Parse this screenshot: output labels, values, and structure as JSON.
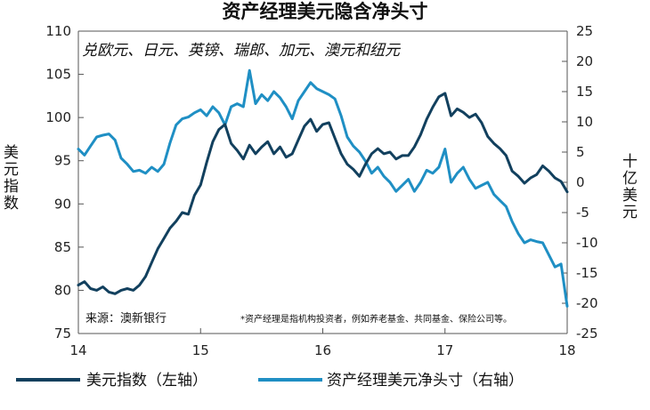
{
  "chart_data": {
    "type": "line",
    "title": "资产经理美元隐含净头寸",
    "subtitle": "兑欧元、日元、英镑、瑞郎、加元、澳元和纽元",
    "ylabel_left": "美元指数",
    "ylabel_right": "十亿美元",
    "ylim_left": [
      75,
      110
    ],
    "ylim_right": [
      -25,
      25
    ],
    "yticks_left": [
      "75",
      "80",
      "85",
      "90",
      "95",
      "100",
      "105",
      "110"
    ],
    "yticks_right": [
      "-25",
      "-20",
      "-15",
      "-10",
      "-5",
      "0",
      "5",
      "10",
      "15",
      "20",
      "25"
    ],
    "xlim": [
      2014.0,
      2018.0
    ],
    "xticks": [
      "14",
      "15",
      "16",
      "17",
      "18"
    ],
    "grid": false,
    "legend": "bottom",
    "colors": {
      "left_series": "#12405e",
      "right_series": "#1f8fc4"
    },
    "source": "来源：澳新银行",
    "footnote": "*资产经理是指机构投资者，例如养老基金、共同基金、保险公司等。",
    "series": [
      {
        "name": "美元指数（左轴）",
        "axis": "left",
        "points": [
          [
            2014.0,
            80.6
          ],
          [
            2014.05,
            81.0
          ],
          [
            2014.1,
            80.2
          ],
          [
            2014.15,
            80.0
          ],
          [
            2014.2,
            80.4
          ],
          [
            2014.25,
            79.8
          ],
          [
            2014.3,
            79.6
          ],
          [
            2014.35,
            80.0
          ],
          [
            2014.4,
            80.2
          ],
          [
            2014.45,
            80.0
          ],
          [
            2014.5,
            80.6
          ],
          [
            2014.55,
            81.6
          ],
          [
            2014.6,
            83.2
          ],
          [
            2014.65,
            84.8
          ],
          [
            2014.7,
            86.0
          ],
          [
            2014.75,
            87.2
          ],
          [
            2014.8,
            88.0
          ],
          [
            2014.85,
            89.0
          ],
          [
            2014.9,
            88.8
          ],
          [
            2014.95,
            91.0
          ],
          [
            2015.0,
            92.2
          ],
          [
            2015.05,
            94.8
          ],
          [
            2015.1,
            97.2
          ],
          [
            2015.15,
            98.6
          ],
          [
            2015.2,
            99.2
          ],
          [
            2015.25,
            97.0
          ],
          [
            2015.3,
            96.2
          ],
          [
            2015.35,
            95.2
          ],
          [
            2015.4,
            96.8
          ],
          [
            2015.45,
            95.8
          ],
          [
            2015.5,
            96.6
          ],
          [
            2015.55,
            97.2
          ],
          [
            2015.6,
            95.8
          ],
          [
            2015.65,
            96.6
          ],
          [
            2015.7,
            95.4
          ],
          [
            2015.75,
            95.8
          ],
          [
            2015.8,
            97.4
          ],
          [
            2015.85,
            99.0
          ],
          [
            2015.9,
            99.8
          ],
          [
            2015.95,
            98.4
          ],
          [
            2016.0,
            99.2
          ],
          [
            2016.05,
            99.4
          ],
          [
            2016.1,
            97.6
          ],
          [
            2016.15,
            95.8
          ],
          [
            2016.2,
            94.6
          ],
          [
            2016.25,
            94.0
          ],
          [
            2016.3,
            93.2
          ],
          [
            2016.35,
            94.6
          ],
          [
            2016.4,
            95.8
          ],
          [
            2016.45,
            96.4
          ],
          [
            2016.5,
            95.8
          ],
          [
            2016.55,
            96.0
          ],
          [
            2016.6,
            95.2
          ],
          [
            2016.65,
            95.6
          ],
          [
            2016.7,
            95.6
          ],
          [
            2016.75,
            96.6
          ],
          [
            2016.8,
            98.0
          ],
          [
            2016.85,
            99.8
          ],
          [
            2016.9,
            101.2
          ],
          [
            2016.95,
            102.4
          ],
          [
            2017.0,
            102.8
          ],
          [
            2017.05,
            100.2
          ],
          [
            2017.1,
            101.0
          ],
          [
            2017.15,
            100.6
          ],
          [
            2017.2,
            100.0
          ],
          [
            2017.25,
            100.4
          ],
          [
            2017.3,
            99.4
          ],
          [
            2017.35,
            97.8
          ],
          [
            2017.4,
            97.0
          ],
          [
            2017.45,
            96.4
          ],
          [
            2017.5,
            95.6
          ],
          [
            2017.55,
            93.8
          ],
          [
            2017.6,
            93.2
          ],
          [
            2017.65,
            92.4
          ],
          [
            2017.7,
            93.0
          ],
          [
            2017.75,
            93.4
          ],
          [
            2017.8,
            94.4
          ],
          [
            2017.85,
            93.8
          ],
          [
            2017.9,
            93.0
          ],
          [
            2017.95,
            92.6
          ],
          [
            2018.0,
            91.4
          ]
        ]
      },
      {
        "name": "资产经理美元净头寸（右轴）",
        "axis": "right",
        "points": [
          [
            2014.0,
            5.5
          ],
          [
            2014.05,
            4.5
          ],
          [
            2014.1,
            6.0
          ],
          [
            2014.15,
            7.5
          ],
          [
            2014.2,
            7.8
          ],
          [
            2014.25,
            8.0
          ],
          [
            2014.3,
            7.0
          ],
          [
            2014.35,
            4.0
          ],
          [
            2014.4,
            3.0
          ],
          [
            2014.45,
            1.8
          ],
          [
            2014.5,
            2.0
          ],
          [
            2014.55,
            1.5
          ],
          [
            2014.6,
            2.5
          ],
          [
            2014.65,
            1.8
          ],
          [
            2014.7,
            3.0
          ],
          [
            2014.75,
            6.5
          ],
          [
            2014.8,
            9.5
          ],
          [
            2014.85,
            10.5
          ],
          [
            2014.9,
            10.8
          ],
          [
            2014.95,
            11.5
          ],
          [
            2015.0,
            12.0
          ],
          [
            2015.05,
            11.0
          ],
          [
            2015.1,
            12.5
          ],
          [
            2015.15,
            11.5
          ],
          [
            2015.2,
            9.5
          ],
          [
            2015.25,
            12.5
          ],
          [
            2015.3,
            13.0
          ],
          [
            2015.35,
            12.5
          ],
          [
            2015.4,
            18.5
          ],
          [
            2015.45,
            13.0
          ],
          [
            2015.5,
            14.5
          ],
          [
            2015.55,
            13.5
          ],
          [
            2015.6,
            15.0
          ],
          [
            2015.65,
            14.0
          ],
          [
            2015.7,
            12.5
          ],
          [
            2015.75,
            10.5
          ],
          [
            2015.8,
            13.5
          ],
          [
            2015.85,
            15.0
          ],
          [
            2015.9,
            16.5
          ],
          [
            2015.95,
            15.5
          ],
          [
            2016.0,
            15.0
          ],
          [
            2016.05,
            14.5
          ],
          [
            2016.1,
            13.8
          ],
          [
            2016.15,
            11.0
          ],
          [
            2016.2,
            7.5
          ],
          [
            2016.25,
            6.0
          ],
          [
            2016.3,
            5.0
          ],
          [
            2016.35,
            3.5
          ],
          [
            2016.4,
            1.5
          ],
          [
            2016.45,
            2.5
          ],
          [
            2016.5,
            1.0
          ],
          [
            2016.55,
            0.0
          ],
          [
            2016.6,
            -1.5
          ],
          [
            2016.65,
            -0.5
          ],
          [
            2016.7,
            0.5
          ],
          [
            2016.75,
            -1.5
          ],
          [
            2016.8,
            0.0
          ],
          [
            2016.85,
            2.0
          ],
          [
            2016.9,
            1.5
          ],
          [
            2016.95,
            2.5
          ],
          [
            2017.0,
            5.5
          ],
          [
            2017.05,
            0.0
          ],
          [
            2017.1,
            1.5
          ],
          [
            2017.15,
            2.5
          ],
          [
            2017.2,
            0.5
          ],
          [
            2017.25,
            -1.0
          ],
          [
            2017.3,
            -0.5
          ],
          [
            2017.35,
            0.0
          ],
          [
            2017.4,
            -2.0
          ],
          [
            2017.45,
            -3.0
          ],
          [
            2017.5,
            -4.0
          ],
          [
            2017.55,
            -6.5
          ],
          [
            2017.6,
            -8.5
          ],
          [
            2017.65,
            -10.0
          ],
          [
            2017.7,
            -9.5
          ],
          [
            2017.75,
            -9.8
          ],
          [
            2017.8,
            -10.0
          ],
          [
            2017.85,
            -12.0
          ],
          [
            2017.9,
            -14.0
          ],
          [
            2017.95,
            -13.5
          ],
          [
            2018.0,
            -20.5
          ]
        ]
      }
    ]
  }
}
